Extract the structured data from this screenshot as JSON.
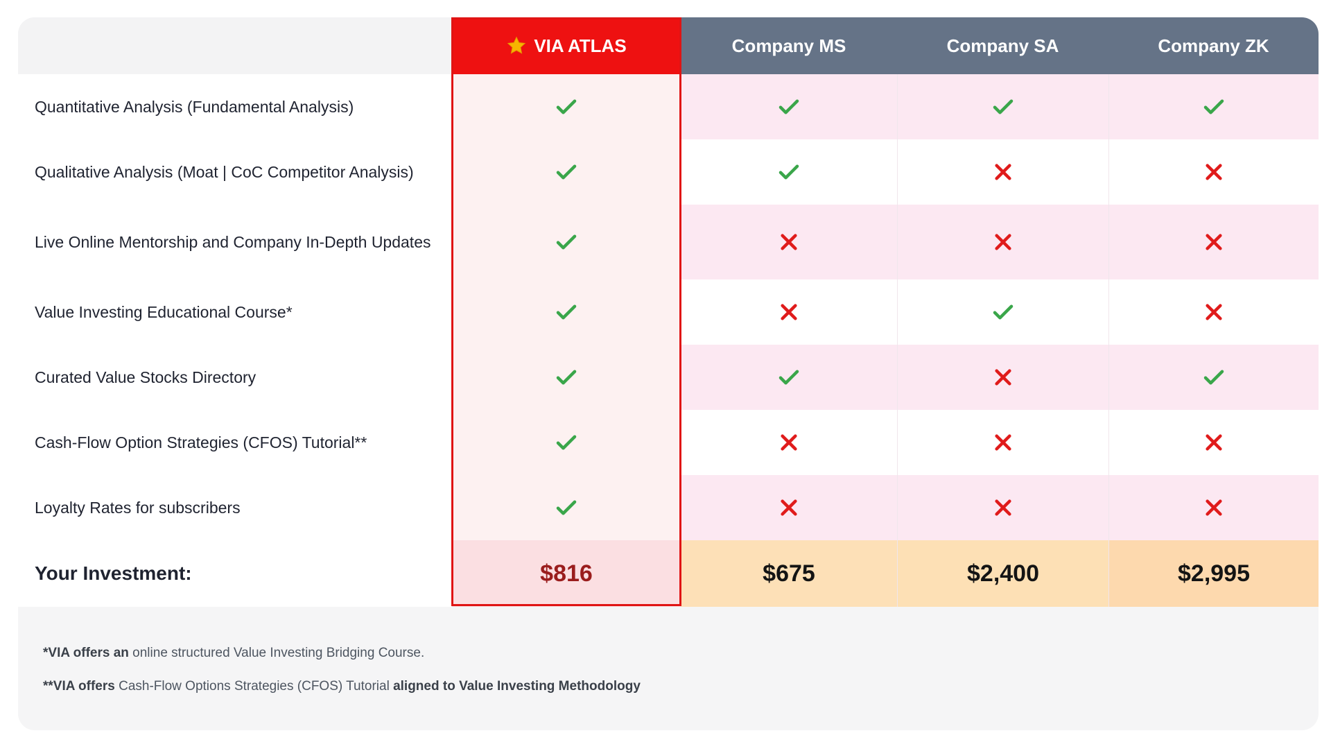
{
  "header": {
    "via": "VIA ATLAS",
    "ms": "Company MS",
    "sa": "Company SA",
    "zk": "Company ZK"
  },
  "features": [
    {
      "label": "Quantitative Analysis (Fundamental Analysis)",
      "via": true,
      "ms": true,
      "sa": true,
      "zk": true
    },
    {
      "label": "Qualitative Analysis (Moat | CoC Competitor Analysis)",
      "via": true,
      "ms": true,
      "sa": false,
      "zk": false
    },
    {
      "label": "Live Online Mentorship and Company In-Depth Updates",
      "via": true,
      "ms": false,
      "sa": false,
      "zk": false
    },
    {
      "label": "Value Investing Educational Course*",
      "via": true,
      "ms": false,
      "sa": true,
      "zk": false
    },
    {
      "label": "Curated Value Stocks Directory",
      "via": true,
      "ms": true,
      "sa": false,
      "zk": true
    },
    {
      "label": "Cash-Flow Option Strategies (CFOS) Tutorial**",
      "via": true,
      "ms": false,
      "sa": false,
      "zk": false
    },
    {
      "label": "Loyalty Rates for subscribers",
      "via": true,
      "ms": false,
      "sa": false,
      "zk": false
    }
  ],
  "investment": {
    "label": "Your Investment:",
    "via": "$816",
    "ms": "$675",
    "sa": "$2,400",
    "zk": "$2,995"
  },
  "notes": {
    "note1_bold": "*VIA offers an",
    "note1_text": " online structured Value Investing Bridging Course.",
    "note2_bold_start": "**VIA offers",
    "note2_text": " Cash-Flow Options Strategies (CFOS) Tutorial ",
    "note2_bold_end": "aligned to Value Investing Methodology"
  },
  "colors": {
    "check": "#3aa64a",
    "cross": "#e01b1b",
    "via_header": "#ee1111",
    "company_header": "#657387",
    "star": "#f7b500"
  },
  "icons": {
    "yes": "check-icon",
    "no": "cross-icon",
    "header": "star-icon"
  }
}
